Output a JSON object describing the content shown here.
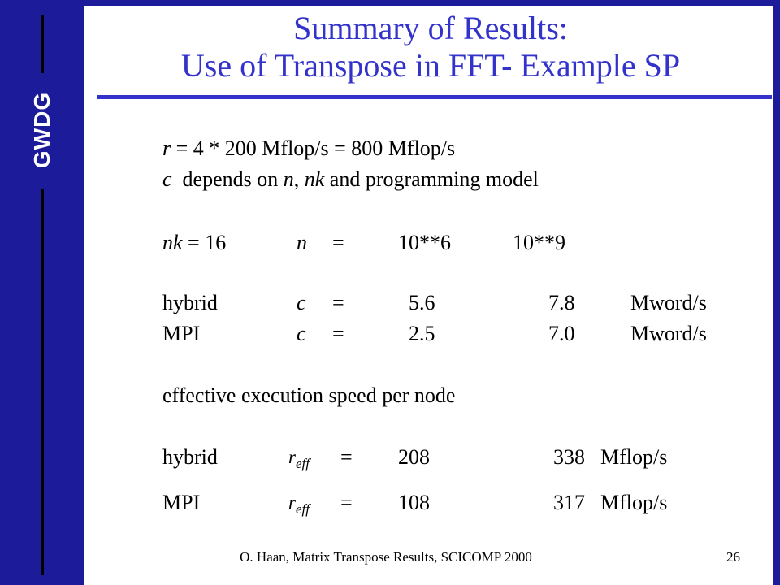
{
  "sidebar": {
    "logo": "GWDG"
  },
  "title": {
    "line1": "Summary of Results:",
    "line2": "Use of Transpose in FFT- Example SP"
  },
  "line_r": {
    "var": "r",
    "text": " = 4 * 200 Mflop/s = 800 Mflop/s"
  },
  "line_c": {
    "var": "c",
    "t1": "  depends on ",
    "n": "n",
    "t2": ", ",
    "nk": "nk",
    "t3": " and programming model"
  },
  "nk_row": {
    "nk": "nk",
    "eq": " = 16",
    "n": "n",
    "equals": "=",
    "v1": "10**6",
    "v2": "10**9"
  },
  "hybrid_c": {
    "label": "hybrid",
    "var": "c",
    "equals": "=",
    "v1": "5.6",
    "v2": "7.8",
    "unit": "Mword/s"
  },
  "mpi_c": {
    "label": "MPI",
    "var": "c",
    "equals": "=",
    "v1": "2.5",
    "v2": "7.0",
    "unit": "Mword/s"
  },
  "effective_heading": "effective execution speed per node",
  "reff_symbol": {
    "base": "r",
    "sub": "eff"
  },
  "hybrid_r": {
    "label": "hybrid",
    "equals": "=",
    "v1": "208",
    "v2": "338",
    "unit": "Mflop/s"
  },
  "mpi_r": {
    "label": "MPI",
    "equals": "=",
    "v1": "108",
    "v2": "317",
    "unit": "Mflop/s"
  },
  "footer": {
    "text": "O. Haan, Matrix Transpose Results, SCICOMP 2000",
    "page_number": "26"
  }
}
